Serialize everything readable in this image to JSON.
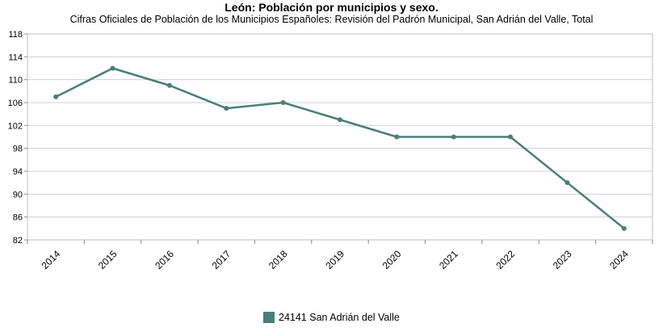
{
  "chart_data": {
    "type": "line",
    "title": "León: Población por municipios y sexo.",
    "subtitle": "Cifras Oficiales de Población de los Municipios Españoles: Revisión del Padrón Municipal, San Adrián del Valle, Total",
    "categories": [
      "2014",
      "2015",
      "2016",
      "2017",
      "2018",
      "2019",
      "2020",
      "2021",
      "2022",
      "2023",
      "2024"
    ],
    "series": [
      {
        "name": "24141 San Adrián del Valle",
        "values": [
          107,
          112,
          109,
          105,
          106,
          103,
          100,
          100,
          100,
          92,
          84
        ],
        "color": "#4a7f77"
      }
    ],
    "ylim": [
      82,
      118
    ],
    "yticks": [
      82,
      86,
      90,
      94,
      98,
      102,
      106,
      110,
      114,
      118
    ],
    "grid": true,
    "legend": "bottom-center"
  }
}
